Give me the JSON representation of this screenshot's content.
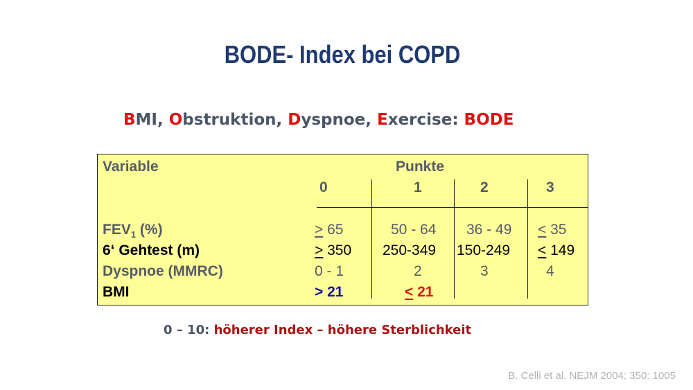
{
  "slide": {
    "title": "BODE- Index bei COPD",
    "subtitle": {
      "parts": [
        {
          "letter": "B",
          "rest": "MI, "
        },
        {
          "letter": "O",
          "rest": "bstruktion, "
        },
        {
          "letter": "D",
          "rest": "yspnoe, "
        },
        {
          "letter": "E",
          "rest": "xercise: "
        }
      ],
      "acronym": "BODE"
    },
    "table": {
      "header_variable": "Variable",
      "header_punkte": "Punkte",
      "score_columns": [
        "0",
        "1",
        "2",
        "3"
      ],
      "rows": [
        {
          "label_main": "FEV",
          "label_sub": "1",
          "label_rest": " (%)",
          "c0_sym": ">",
          "c0_val": " 65",
          "c1": "50 - 64",
          "c2": "36 - 49",
          "c3_sym": "<",
          "c3_val": " 35"
        },
        {
          "label": "6‘ Gehtest (m)",
          "c0_sym": ">",
          "c0_val": " 350",
          "c1": "250-349",
          "c2": "150-249",
          "c3_sym": "<",
          "c3_val": " 149"
        },
        {
          "label": "Dyspnoe (MMRC)",
          "c0": "0 - 1",
          "c1": "2",
          "c2": "3",
          "c3": "4"
        },
        {
          "label": "BMI",
          "c0": "> 21",
          "c1_sym": "<",
          "c1_val": " 21"
        }
      ]
    },
    "footer": {
      "range": "0 – 10: ",
      "text": "höherer Index – höhere Sterblichkeit"
    },
    "citation": "B. Celli et al. NEJM 2004; 350: 1005",
    "colors": {
      "title": "#1f3a6e",
      "box_fill": "#ffff99",
      "accent_red": "#e01010",
      "navy": "#14149a",
      "gray_text": "#555b66"
    }
  }
}
